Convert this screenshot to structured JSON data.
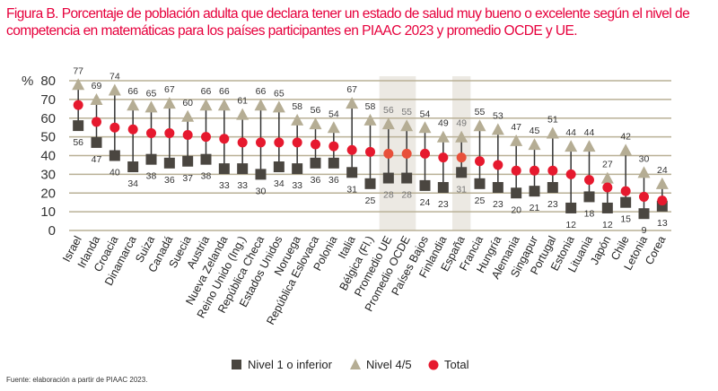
{
  "title": "Figura B. Porcentaje de población adulta que declara tener un estado de salud muy bueno o excelente según el nivel de competencia en matemáticas para los países participantes en PIAAC 2023 y promedio OCDE y UE.",
  "source": "Fuente: elaboración a partir de PIAAC 2023.",
  "colors": {
    "nivel1": "#4a4640",
    "nivel45": "#b5ad94",
    "total": "#e6192e",
    "grid": "#b9b096",
    "shade": "#ece9e3",
    "title": "#e6003c"
  },
  "chart_data": {
    "type": "dot-range",
    "ylabel": "%",
    "ylim": [
      0,
      80
    ],
    "yticks": [
      0,
      10,
      20,
      30,
      40,
      50,
      60,
      70,
      80
    ],
    "categories": [
      "Israel",
      "Irlanda",
      "Croacia",
      "Dinamarca",
      "Suiza",
      "Canadá",
      "Suecia",
      "Austria",
      "Nueva Zelanda",
      "Reino Unido (Ing.)",
      "República Checa",
      "Estados Unidos",
      "Noruega",
      "República Eslovaca",
      "Polonia",
      "Italia",
      "Bélgica (Fl.)",
      "Promedio UE",
      "Promedio OCDE",
      "Países Bajos",
      "Finlandia",
      "España",
      "Francia",
      "Hungría",
      "Alemania",
      "Singapur",
      "Portugal",
      "Estonia",
      "Lituania",
      "Japón",
      "Chile",
      "Letonia",
      "Corea"
    ],
    "highlighted": [
      "Promedio UE",
      "Promedio OCDE",
      "España"
    ],
    "series": [
      {
        "name": "Nivel 1 o inferior",
        "marker": "square",
        "values": [
          56,
          47,
          40,
          34,
          38,
          36,
          37,
          38,
          33,
          33,
          30,
          34,
          33,
          36,
          36,
          31,
          25,
          28,
          28,
          24,
          23,
          31,
          25,
          23,
          20,
          21,
          23,
          12,
          18,
          12,
          15,
          9,
          13
        ]
      },
      {
        "name": "Nivel 4/5",
        "marker": "triangle",
        "values": [
          77,
          69,
          74,
          66,
          65,
          67,
          60,
          66,
          66,
          61,
          66,
          65,
          58,
          56,
          54,
          67,
          58,
          56,
          55,
          54,
          49,
          49,
          55,
          53,
          47,
          45,
          51,
          44,
          44,
          27,
          42,
          30,
          24
        ]
      },
      {
        "name": "Total",
        "marker": "circle",
        "values": [
          67,
          58,
          55,
          54,
          52,
          52,
          51,
          50,
          49,
          47,
          47,
          47,
          47,
          46,
          45,
          43,
          42,
          41,
          41,
          41,
          39,
          39,
          37,
          35,
          32,
          32,
          32,
          30,
          27,
          23,
          21,
          18,
          16
        ]
      }
    ],
    "legend": {
      "placement": "bottom",
      "labels": [
        "Nivel 1 o inferior",
        "Nivel 4/5",
        "Total"
      ]
    }
  }
}
